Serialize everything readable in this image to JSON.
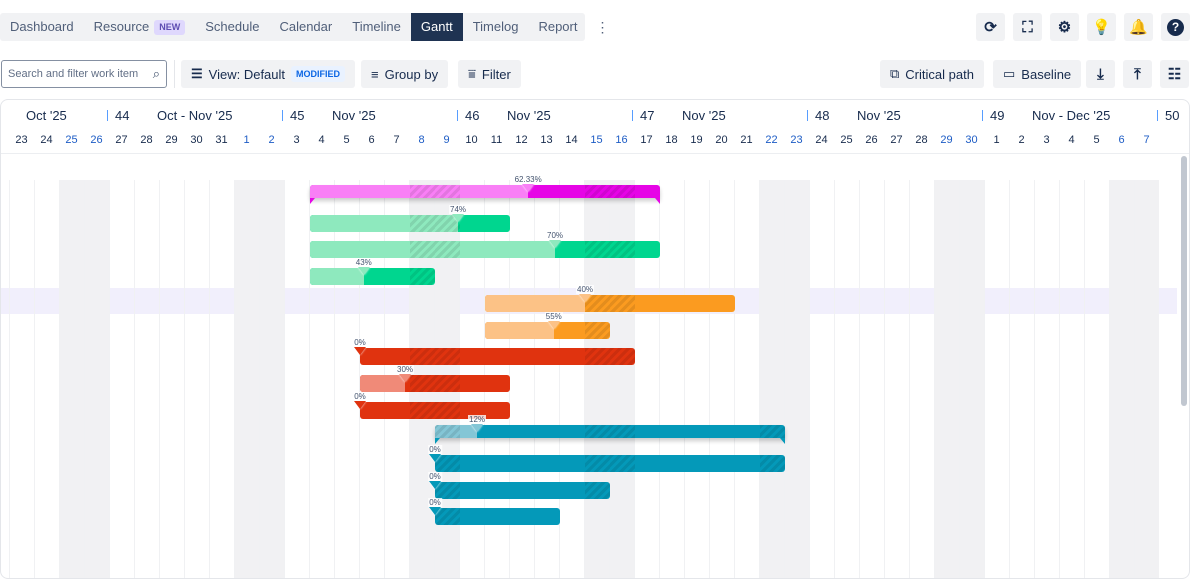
{
  "tabs": [
    {
      "label": "Dashboard"
    },
    {
      "label": "Resource",
      "badge": "NEW"
    },
    {
      "label": "Schedule"
    },
    {
      "label": "Calendar"
    },
    {
      "label": "Timeline"
    },
    {
      "label": "Gantt",
      "active": true
    },
    {
      "label": "Timelog"
    },
    {
      "label": "Report"
    }
  ],
  "more_icon": "⋮",
  "top_icons": [
    {
      "name": "refresh-icon",
      "glyph": "⟳"
    },
    {
      "name": "fullscreen-icon",
      "glyph": "⛶"
    },
    {
      "name": "settings-icon",
      "glyph": "⚙"
    },
    {
      "name": "lightbulb-icon",
      "glyph": "💡"
    },
    {
      "name": "notifications-icon",
      "glyph": "🔔"
    },
    {
      "name": "help-icon",
      "glyph": "?"
    }
  ],
  "toolbar": {
    "search_placeholder": "Search and filter work item",
    "view_label": "View: Default",
    "view_badge": "MODIFIED",
    "group_by": "Group by",
    "filter": "Filter",
    "critical_path": "Critical path",
    "baseline": "Baseline"
  },
  "timeline": {
    "weeks": [
      {
        "num": "44",
        "month": "Oct - Nov '25"
      },
      {
        "num": "45",
        "month": "Nov '25"
      },
      {
        "num": "46",
        "month": "Nov '25"
      },
      {
        "num": "47",
        "month": "Nov '25"
      },
      {
        "num": "48",
        "month": "Nov '25"
      },
      {
        "num": "49",
        "month": "Nov - Dec '25"
      },
      {
        "num": "50",
        "month": ""
      }
    ],
    "first_month": "Oct '25",
    "days": [
      "23",
      "24",
      "25",
      "26",
      "27",
      "28",
      "29",
      "30",
      "31",
      "1",
      "2",
      "3",
      "4",
      "5",
      "6",
      "7",
      "8",
      "9",
      "10",
      "11",
      "12",
      "13",
      "14",
      "15",
      "16",
      "17",
      "18",
      "19",
      "20",
      "21",
      "22",
      "23",
      "24",
      "25",
      "26",
      "27",
      "28",
      "29",
      "30",
      "1",
      "2",
      "3",
      "4",
      "5",
      "6",
      "7"
    ],
    "weekend_indices": [
      2,
      3,
      9,
      10,
      16,
      17,
      23,
      24,
      30,
      31,
      37,
      38,
      44,
      45
    ]
  },
  "colors": {
    "magenta": [
      "#f97ff6",
      "#e605e6"
    ],
    "green": [
      "#8ee9be",
      "#00d68f"
    ],
    "orange": [
      "#fcc286",
      "#fb9b20"
    ],
    "red": [
      "#f08a78",
      "#e0330f"
    ],
    "teal": [
      "#84c6d6",
      "#0499b9"
    ]
  },
  "tasks": [
    {
      "start": 12,
      "end": 26,
      "progress": 62.33,
      "label": "62.33%",
      "color": "magenta",
      "summary": true
    },
    {
      "start": 12,
      "end": 20,
      "progress": 74,
      "label": "74%",
      "color": "green"
    },
    {
      "start": 12,
      "end": 26,
      "progress": 70,
      "label": "70%",
      "color": "green"
    },
    {
      "start": 12,
      "end": 17,
      "progress": 43,
      "label": "43%",
      "color": "green"
    },
    {
      "start": 19,
      "end": 29,
      "progress": 40,
      "label": "40%",
      "color": "orange",
      "highlight": true
    },
    {
      "start": 19,
      "end": 24,
      "progress": 55,
      "label": "55%",
      "color": "orange"
    },
    {
      "start": 14,
      "end": 25,
      "progress": 0,
      "label": "0%",
      "color": "red"
    },
    {
      "start": 14,
      "end": 20,
      "progress": 30,
      "label": "30%",
      "color": "red"
    },
    {
      "start": 14,
      "end": 20,
      "progress": 0,
      "label": "0%",
      "color": "red"
    },
    {
      "start": 17,
      "end": 31,
      "progress": 12,
      "label": "12%",
      "color": "teal",
      "summary": true
    },
    {
      "start": 17,
      "end": 31,
      "progress": 0,
      "label": "0%",
      "color": "teal"
    },
    {
      "start": 17,
      "end": 24,
      "progress": 0,
      "label": "0%",
      "color": "teal"
    },
    {
      "start": 17,
      "end": 22,
      "progress": 0,
      "label": "0%",
      "color": "teal"
    }
  ]
}
